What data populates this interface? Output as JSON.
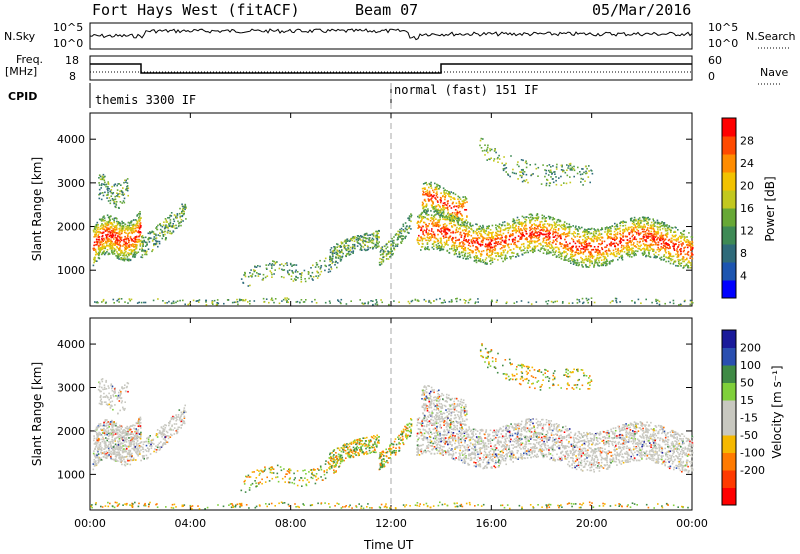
{
  "header": {
    "station": "Fort Hays West (fitACF)",
    "beam": "Beam 07",
    "date": "05/Mar/2016"
  },
  "top_panels": {
    "nsky_label": "N.Sky",
    "nsearch_label": "N.Search",
    "nsky_ticks": [
      "10^5",
      "10^0"
    ],
    "nsearch_ticks": [
      "10^5",
      "10^0"
    ],
    "freq_label_1": "Freq.",
    "freq_label_2": "[MHz]",
    "freq_ticks": [
      "18",
      "8"
    ],
    "nave_label": "Nave",
    "nave_ticks": [
      "60",
      "0"
    ],
    "cpid_label": "CPID",
    "cpid_1": "themis 3300 IF",
    "cpid_2": "normal (fast) 151 IF"
  },
  "colors": {
    "power_scale": [
      "#0000ff",
      "#1d55b0",
      "#2f6b7a",
      "#3e8a55",
      "#67a836",
      "#c2c81f",
      "#f2c200",
      "#ff8c00",
      "#ff4a00",
      "#ff0000"
    ],
    "velocity_scale": [
      "#1a1a9a",
      "#2a4fb0",
      "#3f8a45",
      "#7fcf3a",
      "#c8c8c0",
      "#c8c8c0",
      "#f5b800",
      "#ff7a00",
      "#ff3a00",
      "#ff0000"
    ]
  },
  "chart_data": [
    {
      "type": "heatmap",
      "title": "",
      "xlabel": "",
      "ylabel": "Slant Range [km]",
      "x_ticks": [
        "00:00",
        "04:00",
        "08:00",
        "12:00",
        "16:00",
        "20:00",
        "00:00"
      ],
      "y_ticks": [
        "1000",
        "2000",
        "3000",
        "4000"
      ],
      "xlim_hours": [
        0,
        24
      ],
      "ylim_km": [
        180,
        4600
      ],
      "colorbar_label": "Power [dB]",
      "colorbar_ticks": [
        "4",
        "8",
        "12",
        "16",
        "20",
        "24",
        "28"
      ]
    },
    {
      "type": "heatmap",
      "title": "",
      "xlabel": "Time UT",
      "ylabel": "Slant Range [km]",
      "x_ticks": [
        "00:00",
        "04:00",
        "08:00",
        "12:00",
        "16:00",
        "20:00",
        "00:00"
      ],
      "y_ticks": [
        "1000",
        "2000",
        "3000",
        "4000"
      ],
      "xlim_hours": [
        0,
        24
      ],
      "ylim_km": [
        180,
        4600
      ],
      "colorbar_label": "Velocity [m s⁻¹]",
      "colorbar_ticks": [
        "200",
        "100",
        "50",
        "15",
        "-15",
        "-50",
        "-100",
        "-200"
      ]
    }
  ]
}
